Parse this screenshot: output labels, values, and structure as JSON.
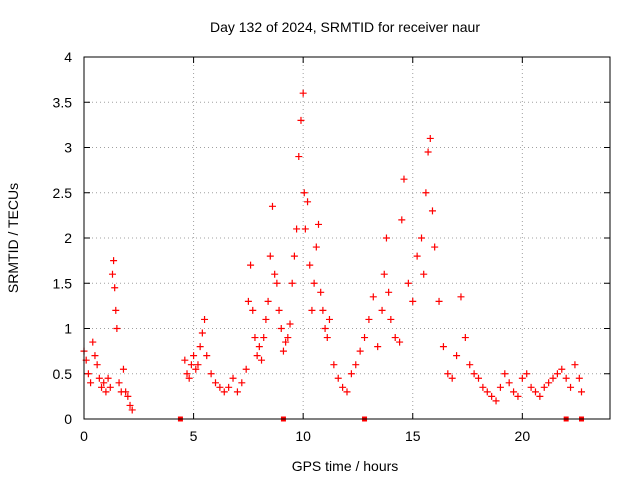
{
  "chart_data": {
    "type": "scatter",
    "title": "Day 132 of 2024, SRMTID for receiver naur",
    "xlabel": "GPS time / hours",
    "ylabel": "SRMTID / TECUs",
    "xlim": [
      0,
      24
    ],
    "ylim": [
      0,
      4
    ],
    "xticks": [
      0,
      5,
      10,
      15,
      20
    ],
    "xtick_labels": [
      "0",
      "5",
      "10",
      "15",
      "20"
    ],
    "yticks": [
      0,
      0.5,
      1,
      1.5,
      2,
      2.5,
      3,
      3.5,
      4
    ],
    "ytick_labels": [
      "0",
      "0.5",
      "1",
      "1.5",
      "2",
      "2.5",
      "3",
      "3.5",
      "4"
    ],
    "grid": true,
    "marker": "+",
    "color": "#ff0000",
    "series": [
      {
        "name": "SRMTID",
        "x": [
          0.0,
          0.1,
          0.2,
          0.3,
          0.4,
          0.5,
          0.6,
          0.7,
          0.8,
          0.9,
          1.0,
          1.1,
          1.2,
          1.3,
          1.35,
          1.4,
          1.45,
          1.5,
          1.6,
          1.7,
          1.8,
          1.9,
          2.0,
          2.1,
          2.2,
          4.6,
          4.7,
          4.8,
          4.9,
          5.0,
          5.1,
          5.2,
          5.3,
          5.4,
          5.5,
          5.6,
          5.8,
          6.0,
          6.2,
          6.4,
          6.6,
          6.8,
          7.0,
          7.2,
          7.4,
          7.5,
          7.6,
          7.7,
          7.8,
          7.9,
          8.0,
          8.1,
          8.2,
          8.3,
          8.4,
          8.5,
          8.6,
          8.7,
          8.8,
          8.9,
          9.0,
          9.1,
          9.2,
          9.3,
          9.4,
          9.5,
          9.6,
          9.7,
          9.8,
          9.9,
          10.0,
          10.05,
          10.1,
          10.2,
          10.3,
          10.4,
          10.5,
          10.6,
          10.7,
          10.8,
          10.9,
          11.0,
          11.1,
          11.2,
          11.4,
          11.6,
          11.8,
          12.0,
          12.2,
          12.4,
          12.6,
          12.8,
          13.0,
          13.2,
          13.4,
          13.6,
          13.7,
          13.8,
          13.9,
          14.0,
          14.2,
          14.4,
          14.5,
          14.6,
          14.8,
          15.0,
          15.2,
          15.4,
          15.5,
          15.6,
          15.7,
          15.8,
          15.9,
          16.0,
          16.2,
          16.4,
          16.6,
          16.8,
          17.0,
          17.2,
          17.4,
          17.6,
          17.8,
          18.0,
          18.2,
          18.4,
          18.6,
          18.8,
          19.0,
          19.2,
          19.4,
          19.6,
          19.8,
          20.0,
          20.2,
          20.4,
          20.6,
          20.8,
          21.0,
          21.2,
          21.4,
          21.6,
          21.8,
          22.0,
          22.2,
          22.4,
          22.6,
          22.7
        ],
        "y": [
          0.75,
          0.65,
          0.5,
          0.4,
          0.85,
          0.7,
          0.6,
          0.45,
          0.35,
          0.4,
          0.3,
          0.45,
          0.35,
          1.6,
          1.75,
          1.45,
          1.2,
          1.0,
          0.4,
          0.3,
          0.55,
          0.3,
          0.25,
          0.15,
          0.1,
          0.65,
          0.5,
          0.45,
          0.6,
          0.7,
          0.55,
          0.6,
          0.8,
          0.95,
          1.1,
          0.7,
          0.5,
          0.4,
          0.35,
          0.3,
          0.35,
          0.45,
          0.3,
          0.4,
          0.55,
          1.3,
          1.7,
          1.2,
          0.9,
          0.7,
          0.8,
          0.65,
          0.9,
          1.1,
          1.3,
          1.8,
          2.35,
          1.6,
          1.5,
          1.2,
          1.0,
          0.75,
          0.85,
          0.9,
          1.05,
          1.5,
          1.8,
          2.1,
          2.9,
          3.3,
          3.6,
          2.5,
          2.1,
          2.4,
          1.7,
          1.2,
          1.5,
          1.9,
          2.15,
          1.4,
          1.2,
          1.0,
          0.9,
          1.1,
          0.6,
          0.45,
          0.35,
          0.3,
          0.5,
          0.6,
          0.75,
          0.9,
          1.1,
          1.35,
          0.8,
          1.2,
          1.6,
          2.0,
          1.4,
          1.1,
          0.9,
          0.85,
          2.2,
          2.65,
          1.5,
          1.3,
          1.8,
          2.0,
          1.6,
          2.5,
          2.95,
          3.1,
          2.3,
          1.9,
          1.3,
          0.8,
          0.5,
          0.45,
          0.7,
          1.35,
          0.9,
          0.6,
          0.5,
          0.45,
          0.35,
          0.3,
          0.25,
          0.2,
          0.35,
          0.5,
          0.4,
          0.3,
          0.25,
          0.45,
          0.5,
          0.35,
          0.3,
          0.25,
          0.35,
          0.4,
          0.45,
          0.5,
          0.55,
          0.45,
          0.35,
          0.6,
          0.45,
          0.3
        ]
      }
    ],
    "gap_markers": [
      4.4,
      9.1,
      12.8,
      22.0,
      22.7
    ]
  }
}
